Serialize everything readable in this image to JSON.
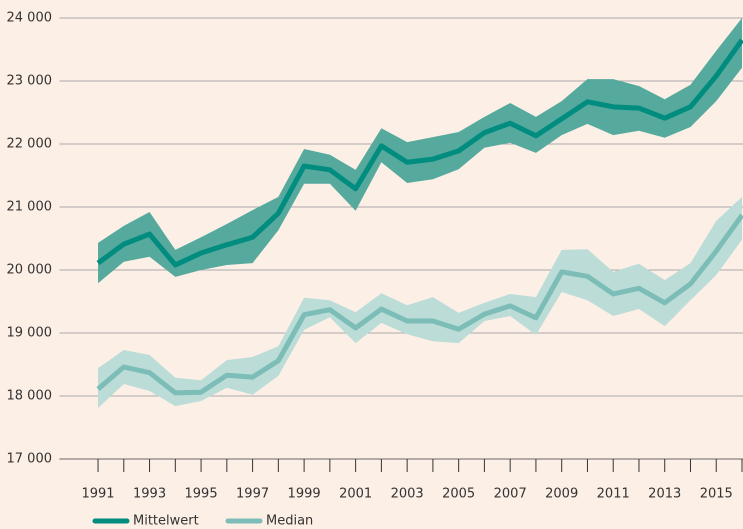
{
  "chart_data": {
    "type": "line",
    "x": [
      1991,
      1992,
      1993,
      1994,
      1995,
      1996,
      1997,
      1998,
      1999,
      2000,
      2001,
      2002,
      2003,
      2004,
      2005,
      2006,
      2007,
      2008,
      2009,
      2010,
      2011,
      2012,
      2013,
      2014,
      2015,
      2016
    ],
    "series": [
      {
        "name": "Mittelwert",
        "color": "#008c7e",
        "band_color": "#55a99d",
        "values": [
          20110,
          20410,
          20570,
          20080,
          20270,
          20400,
          20520,
          20900,
          21650,
          21590,
          21290,
          21970,
          21710,
          21760,
          21890,
          22180,
          22330,
          22130,
          22400,
          22670,
          22590,
          22570,
          22410,
          22590,
          23080,
          23650
        ],
        "upper": [
          20430,
          20700,
          20920,
          20320,
          20520,
          20730,
          20950,
          21160,
          21920,
          21830,
          21590,
          22250,
          22030,
          22110,
          22190,
          22430,
          22650,
          22430,
          22680,
          23030,
          23030,
          22920,
          22710,
          22940,
          23480,
          24000
        ],
        "lower": [
          19790,
          20130,
          20210,
          19890,
          20000,
          20080,
          20110,
          20630,
          21370,
          21370,
          20940,
          21710,
          21380,
          21440,
          21600,
          21940,
          22020,
          21860,
          22140,
          22320,
          22140,
          22210,
          22100,
          22270,
          22680,
          23210
        ]
      },
      {
        "name": "Median",
        "color": "#7dbdb7",
        "band_color": "#bcdcd8",
        "values": [
          18110,
          18460,
          18370,
          18050,
          18060,
          18330,
          18300,
          18560,
          19290,
          19370,
          19080,
          19380,
          19190,
          19190,
          19060,
          19300,
          19430,
          19240,
          19970,
          19900,
          19620,
          19710,
          19480,
          19780,
          20300,
          20870
        ],
        "upper": [
          18440,
          18730,
          18650,
          18290,
          18250,
          18570,
          18620,
          18790,
          19560,
          19520,
          19330,
          19630,
          19440,
          19570,
          19320,
          19480,
          19620,
          19570,
          20320,
          20330,
          19970,
          20100,
          19840,
          20110,
          20780,
          21160
        ],
        "lower": [
          17810,
          18190,
          18080,
          17840,
          17920,
          18130,
          18020,
          18320,
          19050,
          19250,
          18840,
          19160,
          18980,
          18870,
          18840,
          19190,
          19270,
          18970,
          19650,
          19520,
          19270,
          19380,
          19110,
          19520,
          19920,
          20480
        ]
      }
    ],
    "xlim": [
      1989.5,
      2016
    ],
    "xticks": [
      1991,
      1993,
      1995,
      1997,
      1999,
      2001,
      2003,
      2005,
      2007,
      2009,
      2011,
      2013,
      2015
    ],
    "xminorticks": [
      1992,
      1994,
      1996,
      1998,
      2000,
      2002,
      2004,
      2006,
      2008,
      2010,
      2012,
      2014,
      2016
    ],
    "ylim": [
      17000,
      24000
    ],
    "yticks": [
      {
        "value": 17000,
        "label": "17 000"
      },
      {
        "value": 18000,
        "label": "18 000"
      },
      {
        "value": 19000,
        "label": "19 000"
      },
      {
        "value": 20000,
        "label": "20 000"
      },
      {
        "value": 21000,
        "label": "21 000"
      },
      {
        "value": 22000,
        "label": "22 000"
      },
      {
        "value": 23000,
        "label": "23 000"
      },
      {
        "value": 24000,
        "label": "24 000"
      }
    ],
    "grid": true,
    "legend": "bottom-left"
  }
}
